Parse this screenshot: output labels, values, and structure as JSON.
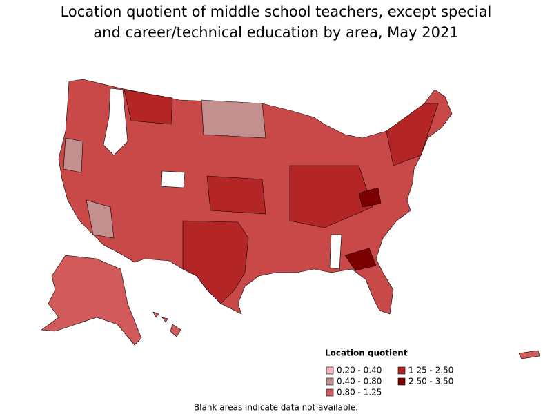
{
  "header": {
    "title": "Location quotient of middle school teachers, except special and career/technical education by area, May 2021"
  },
  "legend": {
    "title": "Location quotient",
    "items": [
      {
        "label": "0.20 - 0.40",
        "color": "#f4b4bf"
      },
      {
        "label": "0.40 - 0.80",
        "color": "#c48f8f"
      },
      {
        "label": "0.80 - 1.25",
        "color": "#d35a5a"
      },
      {
        "label": "1.25 - 2.50",
        "color": "#b42626"
      },
      {
        "label": "2.50 - 3.50",
        "color": "#7c0000"
      }
    ]
  },
  "footnote": "Blank areas indicate data not available."
}
